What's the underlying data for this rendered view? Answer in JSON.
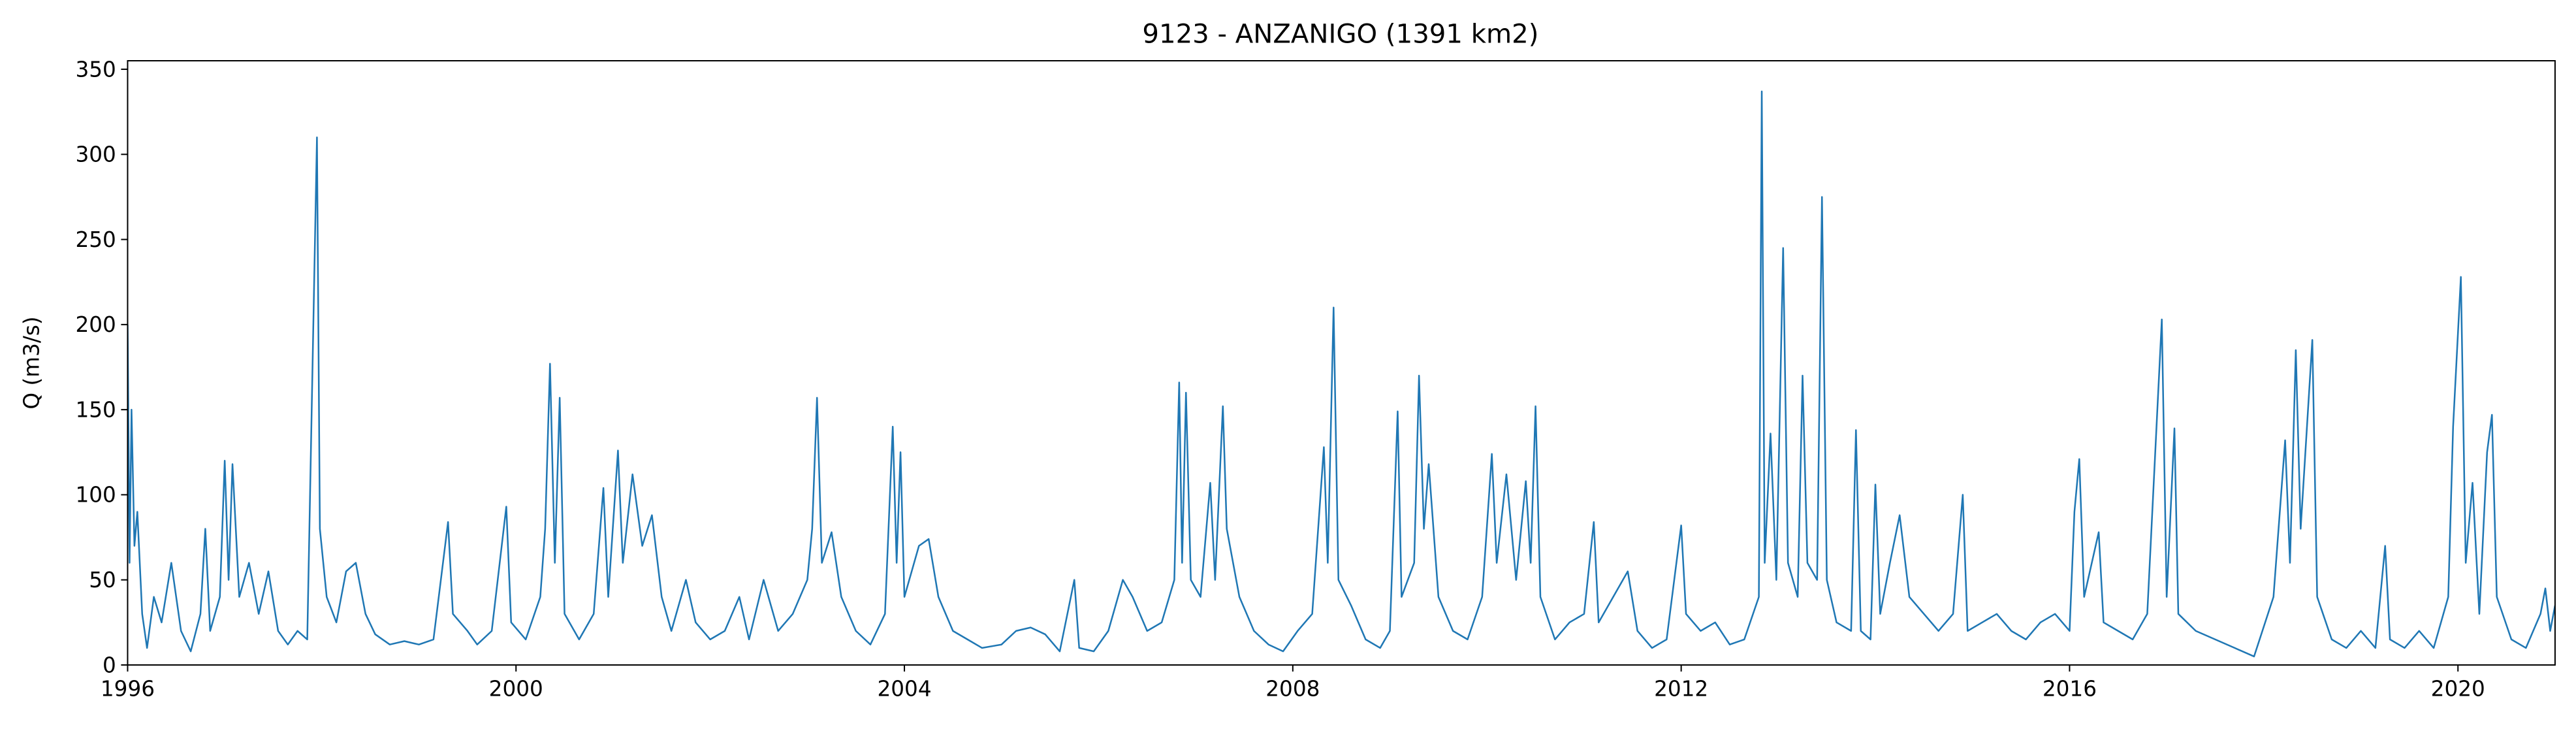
{
  "chart_data": {
    "type": "line",
    "title": "9123 - ANZANIGO (1391 km2)",
    "y_label": "Q (m3/s)",
    "color": "#1f77b4",
    "xlim": [
      1996,
      2021
    ],
    "xticks": [
      1996,
      2000,
      2004,
      2008,
      2012,
      2016,
      2020
    ],
    "ylim": [
      0,
      355
    ],
    "yticks": [
      0,
      50,
      100,
      150,
      200,
      250,
      300,
      350
    ],
    "x": [
      1996.0,
      1996.02,
      1996.04,
      1996.07,
      1996.1,
      1996.15,
      1996.2,
      1996.27,
      1996.35,
      1996.45,
      1996.55,
      1996.65,
      1996.75,
      1996.8,
      1996.85,
      1996.95,
      1997.0,
      1997.04,
      1997.08,
      1997.15,
      1997.25,
      1997.35,
      1997.45,
      1997.55,
      1997.65,
      1997.75,
      1997.85,
      1997.95,
      1997.98,
      1998.05,
      1998.15,
      1998.25,
      1998.35,
      1998.45,
      1998.55,
      1998.7,
      1998.85,
      1999.0,
      1999.15,
      1999.3,
      1999.35,
      1999.5,
      1999.6,
      1999.75,
      1999.9,
      1999.95,
      2000.1,
      2000.25,
      2000.3,
      2000.35,
      2000.4,
      2000.45,
      2000.5,
      2000.65,
      2000.8,
      2000.9,
      2000.95,
      2001.05,
      2001.1,
      2001.2,
      2001.3,
      2001.4,
      2001.5,
      2001.6,
      2001.75,
      2001.85,
      2002.0,
      2002.15,
      2002.3,
      2002.4,
      2002.55,
      2002.7,
      2002.85,
      2003.0,
      2003.05,
      2003.1,
      2003.15,
      2003.25,
      2003.35,
      2003.5,
      2003.65,
      2003.8,
      2003.88,
      2003.92,
      2003.96,
      2004.0,
      2004.15,
      2004.25,
      2004.35,
      2004.5,
      2004.65,
      2004.8,
      2005.0,
      2005.15,
      2005.3,
      2005.45,
      2005.6,
      2005.75,
      2005.8,
      2005.95,
      2006.1,
      2006.25,
      2006.35,
      2006.5,
      2006.65,
      2006.78,
      2006.83,
      2006.86,
      2006.9,
      2006.95,
      2007.05,
      2007.15,
      2007.2,
      2007.28,
      2007.32,
      2007.45,
      2007.6,
      2007.75,
      2007.9,
      2008.05,
      2008.2,
      2008.32,
      2008.36,
      2008.42,
      2008.47,
      2008.6,
      2008.75,
      2008.9,
      2009.0,
      2009.08,
      2009.12,
      2009.25,
      2009.3,
      2009.35,
      2009.4,
      2009.5,
      2009.65,
      2009.8,
      2009.95,
      2010.05,
      2010.1,
      2010.2,
      2010.3,
      2010.4,
      2010.45,
      2010.5,
      2010.55,
      2010.7,
      2010.85,
      2011.0,
      2011.1,
      2011.15,
      2011.3,
      2011.45,
      2011.55,
      2011.7,
      2011.85,
      2012.0,
      2012.05,
      2012.2,
      2012.35,
      2012.5,
      2012.65,
      2012.8,
      2012.83,
      2012.86,
      2012.92,
      2012.98,
      2013.05,
      2013.1,
      2013.2,
      2013.25,
      2013.3,
      2013.4,
      2013.45,
      2013.5,
      2013.6,
      2013.75,
      2013.8,
      2013.85,
      2013.95,
      2014.0,
      2014.05,
      2014.15,
      2014.25,
      2014.35,
      2014.5,
      2014.65,
      2014.8,
      2014.9,
      2014.95,
      2015.1,
      2015.25,
      2015.4,
      2015.55,
      2015.7,
      2015.85,
      2016.0,
      2016.05,
      2016.1,
      2016.15,
      2016.3,
      2016.35,
      2016.5,
      2016.65,
      2016.8,
      2016.95,
      2017.0,
      2017.08,
      2017.12,
      2017.3,
      2017.5,
      2017.7,
      2017.9,
      2018.1,
      2018.22,
      2018.27,
      2018.33,
      2018.38,
      2018.5,
      2018.55,
      2018.7,
      2018.85,
      2019.0,
      2019.15,
      2019.25,
      2019.3,
      2019.45,
      2019.6,
      2019.75,
      2019.9,
      2019.95,
      2020.03,
      2020.08,
      2020.15,
      2020.22,
      2020.3,
      2020.35,
      2020.4,
      2020.55,
      2020.7,
      2020.85,
      2020.9,
      2020.95,
      2021.0
    ],
    "values": [
      200,
      60,
      150,
      70,
      90,
      30,
      10,
      40,
      25,
      60,
      20,
      8,
      30,
      80,
      20,
      40,
      120,
      50,
      118,
      40,
      60,
      30,
      55,
      20,
      12,
      20,
      15,
      310,
      80,
      40,
      25,
      55,
      60,
      30,
      18,
      12,
      14,
      12,
      15,
      84,
      30,
      20,
      12,
      20,
      93,
      25,
      15,
      40,
      80,
      177,
      60,
      157,
      30,
      15,
      30,
      104,
      40,
      126,
      60,
      112,
      70,
      88,
      40,
      20,
      50,
      25,
      15,
      20,
      40,
      15,
      50,
      20,
      30,
      50,
      80,
      157,
      60,
      78,
      40,
      20,
      12,
      30,
      140,
      60,
      125,
      40,
      70,
      74,
      40,
      20,
      15,
      10,
      12,
      20,
      22,
      18,
      8,
      50,
      10,
      8,
      20,
      50,
      40,
      20,
      25,
      50,
      166,
      60,
      160,
      50,
      40,
      107,
      50,
      152,
      80,
      40,
      20,
      12,
      8,
      20,
      30,
      128,
      60,
      210,
      50,
      35,
      15,
      10,
      20,
      149,
      40,
      60,
      170,
      80,
      118,
      40,
      20,
      15,
      40,
      124,
      60,
      112,
      50,
      108,
      60,
      152,
      40,
      15,
      25,
      30,
      84,
      25,
      40,
      55,
      20,
      10,
      15,
      82,
      30,
      20,
      25,
      12,
      15,
      40,
      337,
      60,
      136,
      50,
      245,
      60,
      40,
      170,
      60,
      50,
      275,
      50,
      25,
      20,
      138,
      20,
      15,
      106,
      30,
      60,
      88,
      40,
      30,
      20,
      30,
      100,
      20,
      25,
      30,
      20,
      15,
      25,
      30,
      20,
      90,
      121,
      40,
      78,
      25,
      20,
      15,
      30,
      203,
      40,
      139,
      30,
      20,
      15,
      10,
      5,
      40,
      132,
      60,
      185,
      80,
      191,
      40,
      15,
      10,
      20,
      10,
      70,
      15,
      10,
      20,
      10,
      40,
      140,
      228,
      60,
      107,
      30,
      125,
      147,
      40,
      15,
      10,
      30,
      45,
      20,
      35
    ]
  }
}
